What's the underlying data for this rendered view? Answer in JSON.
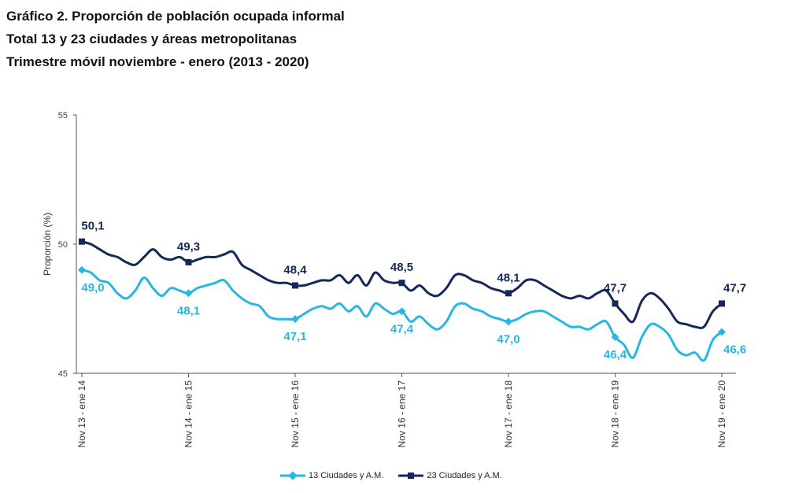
{
  "title_lines": [
    "Gráfico 2. Proporción de población ocupada informal",
    "Total 13 y 23 ciudades y áreas metropolitanas",
    "Trimestre móvil noviembre - enero (2013 -  2020)"
  ],
  "chart_data": {
    "type": "line",
    "ylabel": "Proporción (%)",
    "xlabel": "",
    "ylim": [
      45,
      55
    ],
    "yticks": [
      45,
      50,
      55
    ],
    "grid": false,
    "legend_position": "bottom",
    "x_tick_labels": [
      "Nov 13 - ene 14",
      "Nov 14 - ene 15",
      "Nov 15 - ene 16",
      "Nov 16 - ene 17",
      "Nov 17 - ene 18",
      "Nov 18 - ene 19",
      "Nov 19 - ene 20"
    ],
    "x_tick_positions": [
      0,
      12,
      24,
      36,
      48,
      60,
      72
    ],
    "series": [
      {
        "name": "13 Ciudades y A.M.",
        "color": "#29b6e0",
        "marker": "diamond",
        "values": [
          49.0,
          48.9,
          48.6,
          48.5,
          48.1,
          47.9,
          48.2,
          48.7,
          48.3,
          48.0,
          48.3,
          48.2,
          48.1,
          48.3,
          48.4,
          48.5,
          48.6,
          48.2,
          47.9,
          47.7,
          47.6,
          47.2,
          47.1,
          47.1,
          47.1,
          47.3,
          47.5,
          47.6,
          47.5,
          47.7,
          47.4,
          47.6,
          47.2,
          47.7,
          47.5,
          47.3,
          47.4,
          47.0,
          47.2,
          46.9,
          46.7,
          47.0,
          47.6,
          47.7,
          47.5,
          47.4,
          47.2,
          47.1,
          47.0,
          47.1,
          47.3,
          47.4,
          47.4,
          47.2,
          47.0,
          46.8,
          46.8,
          46.7,
          46.9,
          47.0,
          46.4,
          46.1,
          45.6,
          46.4,
          46.9,
          46.8,
          46.5,
          45.9,
          45.7,
          45.8,
          45.5,
          46.3,
          46.6
        ],
        "labels": [
          {
            "index": 0,
            "text": "49,0"
          },
          {
            "index": 12,
            "text": "48,1"
          },
          {
            "index": 24,
            "text": "47,1"
          },
          {
            "index": 36,
            "text": "47,4"
          },
          {
            "index": 48,
            "text": "47,0"
          },
          {
            "index": 60,
            "text": "46,4"
          },
          {
            "index": 72,
            "text": "46,6"
          }
        ]
      },
      {
        "name": "23  Ciudades y A.M.",
        "color": "#14285a",
        "marker": "square",
        "values": [
          50.1,
          50.0,
          49.8,
          49.6,
          49.5,
          49.3,
          49.2,
          49.5,
          49.8,
          49.5,
          49.4,
          49.5,
          49.3,
          49.4,
          49.5,
          49.5,
          49.6,
          49.7,
          49.2,
          49.0,
          48.8,
          48.6,
          48.5,
          48.5,
          48.4,
          48.4,
          48.5,
          48.6,
          48.6,
          48.8,
          48.5,
          48.8,
          48.4,
          48.9,
          48.6,
          48.5,
          48.5,
          48.2,
          48.4,
          48.1,
          48.0,
          48.3,
          48.8,
          48.8,
          48.6,
          48.5,
          48.3,
          48.2,
          48.1,
          48.3,
          48.6,
          48.6,
          48.4,
          48.2,
          48.0,
          47.9,
          48.0,
          47.9,
          48.1,
          48.2,
          47.7,
          47.3,
          47.0,
          47.8,
          48.1,
          47.9,
          47.5,
          47.0,
          46.9,
          46.8,
          46.8,
          47.4,
          47.7
        ],
        "labels": [
          {
            "index": 0,
            "text": "50,1"
          },
          {
            "index": 12,
            "text": "49,3"
          },
          {
            "index": 24,
            "text": "48,4"
          },
          {
            "index": 36,
            "text": "48,5"
          },
          {
            "index": 48,
            "text": "48,1"
          },
          {
            "index": 60,
            "text": "47,7"
          },
          {
            "index": 72,
            "text": "47,7"
          }
        ]
      }
    ]
  }
}
